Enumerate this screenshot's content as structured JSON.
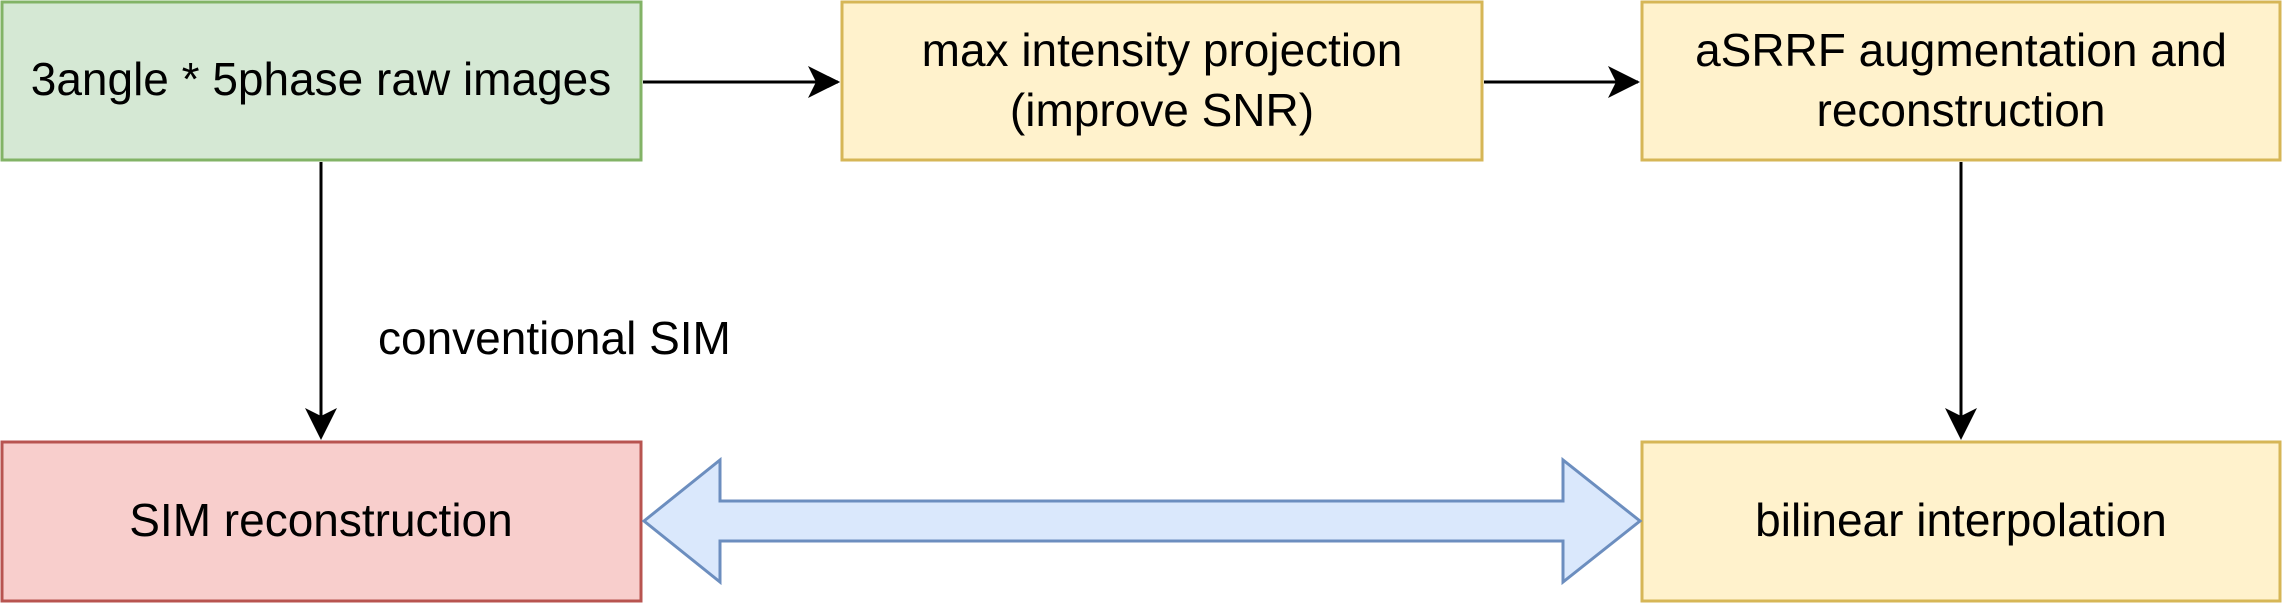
{
  "nodes": {
    "raw_images": {
      "label": "3angle * 5phase raw images",
      "fill": "#d5e8d4",
      "stroke": "#82b366"
    },
    "max_projection": {
      "line1": "max intensity projection",
      "line2": "(improve SNR)",
      "fill": "#fff2cc",
      "stroke": "#d6b656"
    },
    "asrrf": {
      "line1": "aSRRF augmentation and",
      "line2": "reconstruction",
      "fill": "#fff2cc",
      "stroke": "#d6b656"
    },
    "sim_reconstruction": {
      "label": "SIM reconstruction",
      "fill": "#f8cecc",
      "stroke": "#b85450"
    },
    "bilinear": {
      "label": "bilinear interpolation",
      "fill": "#fff2cc",
      "stroke": "#d6b656"
    }
  },
  "edges": {
    "conventional_label": "conventional SIM",
    "arrow_color": "#000000",
    "comparison_fill": "#dae8fc",
    "comparison_stroke": "#6c8ebf"
  }
}
